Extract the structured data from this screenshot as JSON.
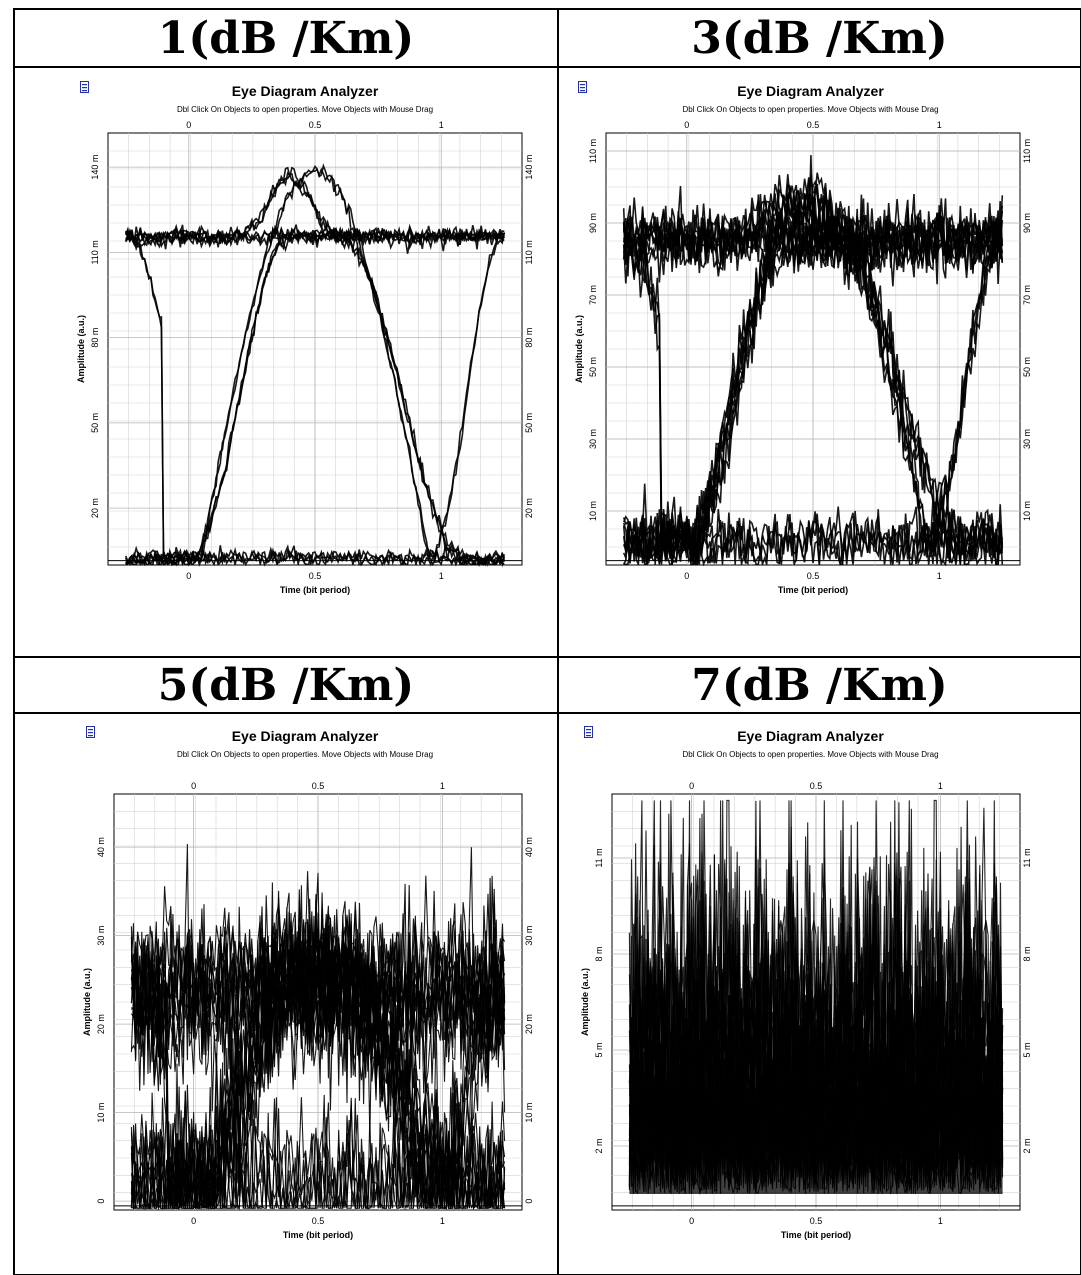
{
  "panels": [
    {
      "id": "p1",
      "header": "1(dB /Km)",
      "title": "Eye Diagram Analyzer",
      "subtitle": "Dbl Click On Objects to open properties.  Move Objects with Mouse Drag",
      "xlabel": "Time (bit period)",
      "ylabel": "Amplitude (a.u.)",
      "x_ticks": [
        "0",
        "0.5",
        "1"
      ],
      "y_ticks": [
        "20 m",
        "50 m",
        "80 m",
        "110 m",
        "140 m"
      ],
      "chart_data": {
        "type": "line",
        "title": "Eye Diagram Analyzer",
        "xlabel": "Time (bit period)",
        "ylabel": "Amplitude (a.u.)",
        "xlim": [
          -0.32,
          1.32
        ],
        "ylim": [
          0,
          152
        ],
        "x_ticks": [
          0,
          0.5,
          1
        ],
        "y_ticks": [
          20,
          50,
          80,
          110,
          140
        ],
        "y_unit": "m",
        "grid": true,
        "eye": {
          "high": 116,
          "low": 2,
          "peak": 138,
          "cross": 34,
          "noise": 1.4,
          "traces": 14
        }
      }
    },
    {
      "id": "p3",
      "header": "3(dB /Km)",
      "title": "Eye Diagram Analyzer",
      "subtitle": "Dbl Click On Objects to open properties.  Move Objects with Mouse Drag",
      "xlabel": "Time (bit period)",
      "ylabel": "Amplitude (a.u.)",
      "x_ticks": [
        "0",
        "0.5",
        "1"
      ],
      "y_ticks": [
        "10 m",
        "30 m",
        "50 m",
        "70 m",
        "90 m",
        "110 m"
      ],
      "chart_data": {
        "type": "line",
        "title": "Eye Diagram Analyzer",
        "xlabel": "Time (bit period)",
        "ylabel": "Amplitude (a.u.)",
        "xlim": [
          -0.32,
          1.32
        ],
        "ylim": [
          -5,
          115
        ],
        "x_ticks": [
          0,
          0.5,
          1
        ],
        "y_ticks": [
          10,
          30,
          50,
          70,
          90,
          110
        ],
        "y_unit": "m",
        "grid": true,
        "eye": {
          "high": 85,
          "low": 1,
          "peak": 96,
          "cross": 27,
          "noise": 4,
          "traces": 22
        }
      }
    },
    {
      "id": "p5",
      "header": "5(dB /Km)",
      "title": "Eye Diagram Analyzer",
      "subtitle": "Dbl Click On Objects to open properties.  Move Objects with Mouse Drag",
      "xlabel": "Time (bit period)",
      "ylabel": "Amplitude (a.u.)",
      "x_ticks": [
        "0",
        "0.5",
        "1"
      ],
      "y_ticks": [
        "0",
        "10 m",
        "20 m",
        "30 m",
        "40 m"
      ],
      "chart_data": {
        "type": "line",
        "title": "Eye Diagram Analyzer",
        "xlabel": "Time (bit period)",
        "ylabel": "Amplitude (a.u.)",
        "xlim": [
          -0.32,
          1.32
        ],
        "ylim": [
          -1,
          46
        ],
        "x_ticks": [
          0,
          0.5,
          1
        ],
        "y_ticks": [
          0,
          10,
          20,
          30,
          40
        ],
        "y_unit": "m",
        "grid": true,
        "eye": {
          "high": 24,
          "low": 1,
          "peak": 27,
          "cross": 8,
          "noise": 4,
          "traces": 30
        }
      }
    },
    {
      "id": "p7",
      "header": "7(dB /Km)",
      "title": "Eye Diagram Analyzer",
      "subtitle": "Dbl Click On Objects to open properties.  Move Objects with Mouse Drag",
      "xlabel": "Time (bit period)",
      "ylabel": "Amplitude (a.u.)",
      "x_ticks": [
        "0",
        "0.5",
        "1"
      ],
      "y_ticks": [
        "2 m",
        "5 m",
        "8 m",
        "11 m"
      ],
      "chart_data": {
        "type": "line",
        "title": "Eye Diagram Analyzer",
        "xlabel": "Time (bit period)",
        "ylabel": "Amplitude (a.u.)",
        "xlim": [
          -0.32,
          1.32
        ],
        "ylim": [
          0,
          13
        ],
        "x_ticks": [
          0,
          0.5,
          1
        ],
        "y_ticks": [
          2,
          5,
          8,
          11
        ],
        "y_unit": "m",
        "grid": true,
        "eye": {
          "high": 4,
          "low": 0.5,
          "peak": 5,
          "cross": 1.5,
          "noise": 1.8,
          "traces": 30
        }
      }
    }
  ]
}
